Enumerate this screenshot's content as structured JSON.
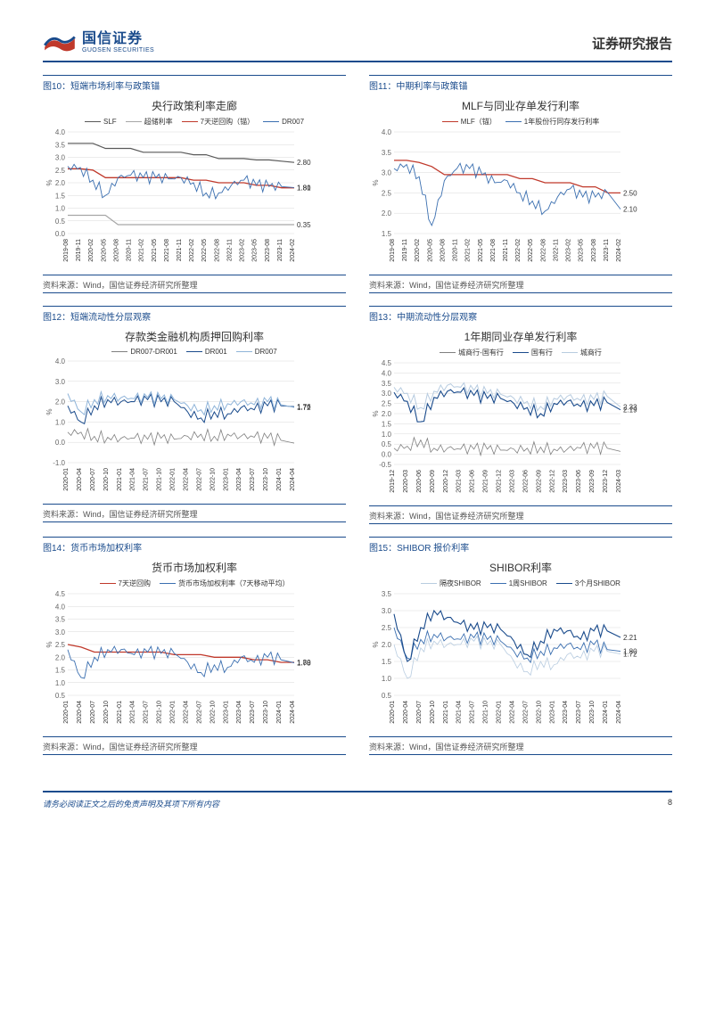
{
  "header": {
    "company_cn": "国信证券",
    "company_en": "GUOSEN SECURITIES",
    "doc_title": "证券研究报告"
  },
  "palette": {
    "navy": "#1a4b8c",
    "gray": "#808080",
    "darkgray": "#595959",
    "red": "#c0392b",
    "blue": "#3b6fb0",
    "lightblue": "#8fb4d9",
    "paleblue": "#b8cce0",
    "grid": "#d9d9d9"
  },
  "charts": [
    {
      "fig": "图10：短端市场利率与政策锚",
      "title": "央行政策利率走廊",
      "ylabel": "%",
      "ylim": [
        0,
        4
      ],
      "yticks": [
        0.0,
        0.5,
        1.0,
        1.5,
        2.0,
        2.5,
        3.0,
        3.5,
        4.0
      ],
      "xticks": [
        "2019-08",
        "2019-11",
        "2020-02",
        "2020-05",
        "2020-08",
        "2020-11",
        "2021-02",
        "2021-05",
        "2021-08",
        "2021-11",
        "2022-02",
        "2022-05",
        "2022-08",
        "2022-11",
        "2023-02",
        "2023-05",
        "2023-08",
        "2023-11",
        "2024-02"
      ],
      "legend": [
        {
          "label": "SLF",
          "color": "#595959"
        },
        {
          "label": "超储利率",
          "color": "#a6a6a6"
        },
        {
          "label": "7天逆回购（锚）",
          "color": "#c0392b"
        },
        {
          "label": "DR007",
          "color": "#3b6fb0"
        }
      ],
      "series": [
        {
          "color": "#595959",
          "width": 1.2,
          "data": [
            3.55,
            3.55,
            3.55,
            3.35,
            3.35,
            3.35,
            3.2,
            3.2,
            3.2,
            3.2,
            3.1,
            3.1,
            2.95,
            2.95,
            2.95,
            2.9,
            2.9,
            2.85,
            2.8
          ]
        },
        {
          "color": "#a6a6a6",
          "width": 1.2,
          "data": [
            0.72,
            0.72,
            0.72,
            0.72,
            0.35,
            0.35,
            0.35,
            0.35,
            0.35,
            0.35,
            0.35,
            0.35,
            0.35,
            0.35,
            0.35,
            0.35,
            0.35,
            0.35,
            0.35
          ]
        },
        {
          "color": "#c0392b",
          "width": 1.3,
          "data": [
            2.55,
            2.55,
            2.5,
            2.2,
            2.2,
            2.2,
            2.2,
            2.2,
            2.2,
            2.2,
            2.1,
            2.1,
            2.0,
            2.0,
            2.0,
            1.9,
            1.9,
            1.8,
            1.8
          ]
        },
        {
          "color": "#3b6fb0",
          "width": 0.9,
          "noisy": true,
          "data": [
            2.65,
            2.6,
            2.1,
            1.5,
            2.2,
            2.3,
            2.2,
            2.2,
            2.15,
            2.2,
            2.0,
            1.6,
            1.6,
            1.9,
            2.1,
            1.9,
            1.85,
            1.85,
            1.81
          ]
        }
      ],
      "end_labels": [
        {
          "v": 2.8,
          "c": "#595959"
        },
        {
          "v": 1.81,
          "c": "#3b6fb0"
        },
        {
          "v": 1.8,
          "c": "#c0392b"
        },
        {
          "v": 0.35,
          "c": "#a6a6a6"
        }
      ],
      "source": "资料来源：Wind，国信证券经济研究所整理"
    },
    {
      "fig": "图11：中期利率与政策锚",
      "title": "MLF与同业存单发行利率",
      "ylabel": "%",
      "ylim": [
        1.5,
        4
      ],
      "yticks": [
        1.5,
        2.0,
        2.5,
        3.0,
        3.5,
        4.0
      ],
      "xticks": [
        "2019-08",
        "2019-11",
        "2020-02",
        "2020-05",
        "2020-08",
        "2020-11",
        "2021-02",
        "2021-05",
        "2021-08",
        "2021-11",
        "2022-02",
        "2022-05",
        "2022-08",
        "2022-11",
        "2023-02",
        "2023-05",
        "2023-08",
        "2023-11",
        "2024-02"
      ],
      "legend": [
        {
          "label": "MLF（锚）",
          "color": "#c0392b"
        },
        {
          "label": "1年股份行同存发行利率",
          "color": "#3b6fb0"
        }
      ],
      "series": [
        {
          "color": "#c0392b",
          "width": 1.3,
          "data": [
            3.3,
            3.3,
            3.25,
            3.15,
            2.95,
            2.95,
            2.95,
            2.95,
            2.95,
            2.95,
            2.85,
            2.85,
            2.75,
            2.75,
            2.75,
            2.65,
            2.65,
            2.5,
            2.5
          ]
        },
        {
          "color": "#3b6fb0",
          "width": 0.9,
          "noisy": true,
          "data": [
            3.1,
            3.2,
            2.9,
            1.7,
            2.8,
            3.1,
            3.1,
            2.95,
            2.75,
            2.8,
            2.5,
            2.3,
            2.05,
            2.4,
            2.6,
            2.4,
            2.4,
            2.5,
            2.1
          ]
        }
      ],
      "end_labels": [
        {
          "v": 2.5,
          "c": "#c0392b"
        },
        {
          "v": 2.1,
          "c": "#3b6fb0"
        }
      ],
      "source": "资料来源：Wind，国信证券经济研究所整理"
    },
    {
      "fig": "图12：短端流动性分层观察",
      "title": "存款类金融机构质押回购利率",
      "ylabel": "%",
      "ylim": [
        -1,
        4
      ],
      "yticks": [
        -1.0,
        0.0,
        1.0,
        2.0,
        3.0,
        4.0
      ],
      "xticks": [
        "2020-01",
        "2020-04",
        "2020-07",
        "2020-10",
        "2021-01",
        "2021-04",
        "2021-07",
        "2021-10",
        "2022-01",
        "2022-04",
        "2022-07",
        "2022-10",
        "2023-01",
        "2023-04",
        "2023-07",
        "2023-10",
        "2024-01",
        "2024-04"
      ],
      "legend": [
        {
          "label": "DR007-DR001",
          "color": "#808080"
        },
        {
          "label": "DR001",
          "color": "#1a4b8c"
        },
        {
          "label": "DR007",
          "color": "#8fb4d9"
        }
      ],
      "series": [
        {
          "color": "#1a4b8c",
          "width": 1,
          "noisy": true,
          "data": [
            1.8,
            1.0,
            1.8,
            2.1,
            2.0,
            2.0,
            2.1,
            2.0,
            2.0,
            1.5,
            1.2,
            1.5,
            1.4,
            1.7,
            1.6,
            1.8,
            1.8,
            1.76
          ]
        },
        {
          "color": "#8fb4d9",
          "width": 1,
          "noisy": true,
          "data": [
            2.4,
            1.5,
            2.1,
            2.3,
            2.2,
            2.15,
            2.2,
            2.15,
            2.1,
            1.8,
            1.6,
            1.8,
            1.9,
            2.0,
            1.85,
            2.0,
            1.85,
            1.72
          ]
        },
        {
          "color": "#808080",
          "width": 0.8,
          "noisy": true,
          "data": [
            0.5,
            0.5,
            0.3,
            0.25,
            0.2,
            0.2,
            0.15,
            0.2,
            0.15,
            0.3,
            0.4,
            0.3,
            0.4,
            0.3,
            0.25,
            0.2,
            0.1,
            -0.04
          ]
        }
      ],
      "end_labels": [
        {
          "v": 1.72,
          "c": "#8fb4d9"
        },
        {
          "v": 1.76,
          "c": "#1a4b8c"
        }
      ],
      "source": "资料来源：Wind，国信证券经济研究所整理"
    },
    {
      "fig": "图13：中期流动性分层观察",
      "title": "1年期同业存单发行利率",
      "ylabel": "%",
      "ylim": [
        -0.5,
        4.5
      ],
      "yticks": [
        -0.5,
        0.0,
        0.5,
        1.0,
        1.5,
        2.0,
        2.5,
        3.0,
        3.5,
        4.0,
        4.5
      ],
      "xticks": [
        "2019-12",
        "2020-03",
        "2020-06",
        "2020-09",
        "2020-12",
        "2021-03",
        "2021-06",
        "2021-09",
        "2021-12",
        "2022-03",
        "2022-06",
        "2022-09",
        "2022-12",
        "2023-03",
        "2023-06",
        "2023-09",
        "2023-12",
        "2024-03"
      ],
      "legend": [
        {
          "label": "城商行-国有行",
          "color": "#808080"
        },
        {
          "label": "国有行",
          "color": "#1a4b8c"
        },
        {
          "label": "城商行",
          "color": "#b8cce0"
        }
      ],
      "series": [
        {
          "color": "#b8cce0",
          "width": 1,
          "noisy": true,
          "data": [
            3.3,
            3.0,
            2.3,
            3.1,
            3.4,
            3.3,
            3.15,
            3.0,
            2.95,
            2.75,
            2.6,
            2.35,
            2.75,
            2.85,
            2.65,
            2.7,
            2.85,
            2.33
          ]
        },
        {
          "color": "#1a4b8c",
          "width": 1.1,
          "noisy": true,
          "data": [
            3.05,
            2.6,
            1.6,
            2.8,
            3.1,
            3.05,
            2.9,
            2.75,
            2.75,
            2.5,
            2.3,
            2.0,
            2.5,
            2.6,
            2.35,
            2.4,
            2.55,
            2.19
          ]
        },
        {
          "color": "#808080",
          "width": 0.8,
          "noisy": true,
          "data": [
            0.3,
            0.4,
            0.7,
            0.3,
            0.3,
            0.25,
            0.25,
            0.25,
            0.2,
            0.25,
            0.3,
            0.35,
            0.25,
            0.25,
            0.3,
            0.3,
            0.3,
            0.14
          ]
        }
      ],
      "end_labels": [
        {
          "v": 2.19,
          "c": "#1a4b8c"
        },
        {
          "v": 2.33,
          "c": "#b8cce0"
        }
      ],
      "source": "资料来源：Wind，国信证券经济研究所整理"
    },
    {
      "fig": "图14：货币市场加权利率",
      "title": "货币市场加权利率",
      "ylabel": "%",
      "ylim": [
        0.5,
        4.5
      ],
      "yticks": [
        0.5,
        1.0,
        1.5,
        2.0,
        2.5,
        3.0,
        3.5,
        4.0,
        4.5
      ],
      "xticks": [
        "2020-01",
        "2020-04",
        "2020-07",
        "2020-10",
        "2021-01",
        "2021-04",
        "2021-07",
        "2021-10",
        "2022-01",
        "2022-04",
        "2022-07",
        "2022-10",
        "2023-01",
        "2023-04",
        "2023-07",
        "2023-10",
        "2024-01",
        "2024-04"
      ],
      "legend": [
        {
          "label": "7天逆回购",
          "color": "#c0392b"
        },
        {
          "label": "货币市场加权利率（7天移动平均）",
          "color": "#3b6fb0"
        }
      ],
      "series": [
        {
          "color": "#c0392b",
          "width": 1.3,
          "data": [
            2.5,
            2.4,
            2.2,
            2.2,
            2.2,
            2.2,
            2.2,
            2.2,
            2.1,
            2.1,
            2.1,
            2.0,
            2.0,
            2.0,
            1.9,
            1.9,
            1.8,
            1.8
          ]
        },
        {
          "color": "#3b6fb0",
          "width": 0.9,
          "noisy": true,
          "data": [
            2.3,
            1.2,
            2.0,
            2.3,
            2.3,
            2.1,
            2.2,
            2.15,
            2.15,
            1.8,
            1.4,
            1.7,
            1.6,
            2.0,
            1.8,
            2.0,
            1.9,
            1.78
          ]
        }
      ],
      "end_labels": [
        {
          "v": 1.78,
          "c": "#3b6fb0"
        },
        {
          "v": 1.8,
          "c": "#c0392b"
        }
      ],
      "source": "资料来源：Wind，国信证券经济研究所整理"
    },
    {
      "fig": "图15：SHIBOR 报价利率",
      "title": "SHIBOR利率",
      "ylabel": "%",
      "ylim": [
        0.5,
        3.5
      ],
      "yticks": [
        0.5,
        1.0,
        1.5,
        2.0,
        2.5,
        3.0,
        3.5
      ],
      "xticks": [
        "2020-01",
        "2020-04",
        "2020-07",
        "2020-10",
        "2021-01",
        "2021-04",
        "2021-07",
        "2021-10",
        "2022-01",
        "2022-04",
        "2022-07",
        "2022-10",
        "2023-01",
        "2023-04",
        "2023-07",
        "2023-10",
        "2024-01",
        "2024-04"
      ],
      "legend": [
        {
          "label": "隔夜SHIBOR",
          "color": "#b8cce0"
        },
        {
          "label": "1周SHIBOR",
          "color": "#3b6fb0"
        },
        {
          "label": "3个月SHIBOR",
          "color": "#1a4b8c"
        }
      ],
      "series": [
        {
          "color": "#b8cce0",
          "width": 0.8,
          "noisy": true,
          "data": [
            2.0,
            1.0,
            1.9,
            2.1,
            2.0,
            2.0,
            2.1,
            2.0,
            2.0,
            1.5,
            1.2,
            1.5,
            1.4,
            1.7,
            1.6,
            1.8,
            1.8,
            1.72
          ]
        },
        {
          "color": "#3b6fb0",
          "width": 0.9,
          "noisy": true,
          "data": [
            2.5,
            1.6,
            2.15,
            2.3,
            2.2,
            2.15,
            2.2,
            2.15,
            2.1,
            1.8,
            1.6,
            1.8,
            1.9,
            2.0,
            1.85,
            2.0,
            1.85,
            1.8
          ]
        },
        {
          "color": "#1a4b8c",
          "width": 1.1,
          "noisy": true,
          "data": [
            2.9,
            1.5,
            2.5,
            3.0,
            2.8,
            2.6,
            2.45,
            2.5,
            2.45,
            2.1,
            1.7,
            2.1,
            2.45,
            2.4,
            2.15,
            2.4,
            2.4,
            2.21
          ]
        }
      ],
      "end_labels": [
        {
          "v": 2.21,
          "c": "#1a4b8c"
        },
        {
          "v": 1.8,
          "c": "#3b6fb0"
        },
        {
          "v": 1.72,
          "c": "#b8cce0"
        }
      ],
      "source": "资料来源：Wind，国信证券经济研究所整理"
    }
  ],
  "footer": {
    "disclaimer": "请务必阅读正文之后的免责声明及其项下所有内容",
    "page": "8"
  }
}
